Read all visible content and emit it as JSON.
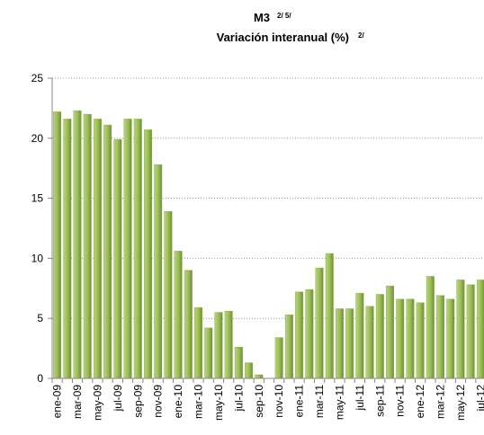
{
  "chart_data": {
    "type": "bar",
    "title": "M3",
    "title_note": "2/ 5/",
    "subtitle": "Variación interanual (%)",
    "subtitle_note": "2/",
    "categories": [
      "ene-09",
      null,
      "mar-09",
      null,
      "may-09",
      null,
      "jul-09",
      null,
      "sep-09",
      null,
      "nov-09",
      null,
      "ene-10",
      null,
      "mar-10",
      null,
      "may-10",
      null,
      "jul-10",
      null,
      "sep-10",
      null,
      "nov-10",
      null,
      "ene-11",
      null,
      "mar-11",
      null,
      "may-11",
      null,
      "jul-11",
      null,
      "sep-11",
      null,
      "nov-11",
      null,
      "ene-12",
      null,
      "mar-12",
      null,
      "may-12",
      null,
      "jul-12"
    ],
    "values": [
      22.2,
      21.6,
      22.3,
      22.0,
      21.6,
      21.1,
      19.9,
      21.6,
      21.6,
      20.7,
      17.8,
      13.9,
      10.6,
      9.0,
      5.9,
      4.2,
      5.5,
      5.6,
      2.6,
      1.3,
      0.3,
      0.0,
      3.4,
      5.3,
      7.2,
      7.4,
      9.2,
      10.4,
      5.8,
      5.8,
      7.1,
      6.0,
      7.0,
      7.7,
      6.6,
      6.6,
      6.3,
      8.5,
      6.9,
      6.6,
      8.2,
      7.8,
      8.2
    ],
    "color": "#8fb14b",
    "ylim": [
      0,
      25
    ],
    "yticks": [
      0,
      5,
      10,
      15,
      20,
      25
    ],
    "grid": true
  }
}
